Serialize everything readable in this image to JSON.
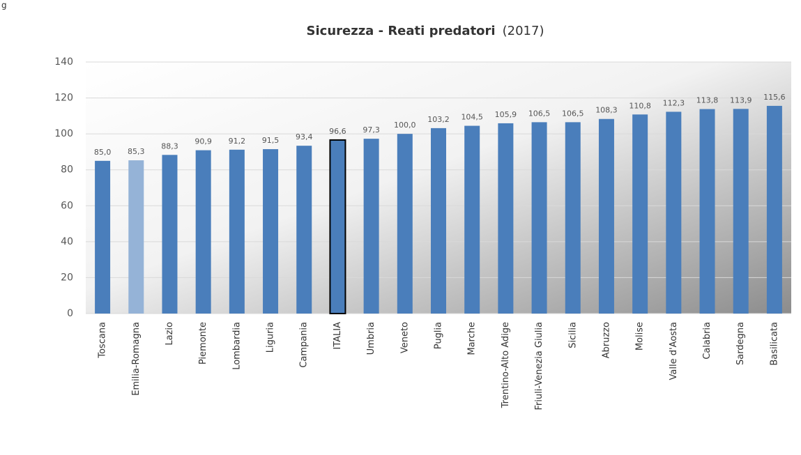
{
  "chart_data": {
    "type": "bar",
    "caption": "g",
    "title": "Sicurezza - Reati predatori",
    "subtitle": "(2017)",
    "categories": [
      "Toscana",
      "Emilia-Romagna",
      "Lazio",
      "Piemonte",
      "Lombardia",
      "Liguria",
      "Campania",
      "ITALIA",
      "Umbria",
      "Veneto",
      "Puglia",
      "Marche",
      "Trentino-Alto Adige",
      "Friuli-Venezia Giulia",
      "Sicilia",
      "Abruzzo",
      "Molise",
      "Valle d'Aosta",
      "Calabria",
      "Sardegna",
      "Basilicata"
    ],
    "values": [
      85.0,
      85.3,
      88.3,
      90.9,
      91.2,
      91.5,
      93.4,
      96.6,
      97.3,
      100.0,
      103.2,
      104.5,
      105.9,
      106.5,
      106.5,
      108.3,
      110.8,
      112.3,
      113.8,
      113.9,
      115.6
    ],
    "value_labels": [
      "85,0",
      "85,3",
      "88,3",
      "90,9",
      "91,2",
      "91,5",
      "93,4",
      "96,6",
      "97,3",
      "100,0",
      "103,2",
      "104,5",
      "105,9",
      "106,5",
      "106,5",
      "108,3",
      "110,8",
      "112,3",
      "113,8",
      "113,9",
      "115,6"
    ],
    "colors": [
      "#4a7ebb",
      "#95b3d7",
      "#4a7ebb",
      "#4a7ebb",
      "#4a7ebb",
      "#4a7ebb",
      "#4a7ebb",
      "#4a7ebb",
      "#4a7ebb",
      "#4a7ebb",
      "#4a7ebb",
      "#4a7ebb",
      "#4a7ebb",
      "#4a7ebb",
      "#4a7ebb",
      "#4a7ebb",
      "#4a7ebb",
      "#4a7ebb",
      "#4a7ebb",
      "#4a7ebb",
      "#4a7ebb"
    ],
    "outlined": "ITALIA",
    "ylim": [
      0,
      140
    ],
    "yticks": [
      0,
      20,
      40,
      60,
      80,
      100,
      120,
      140
    ],
    "grid": true
  }
}
